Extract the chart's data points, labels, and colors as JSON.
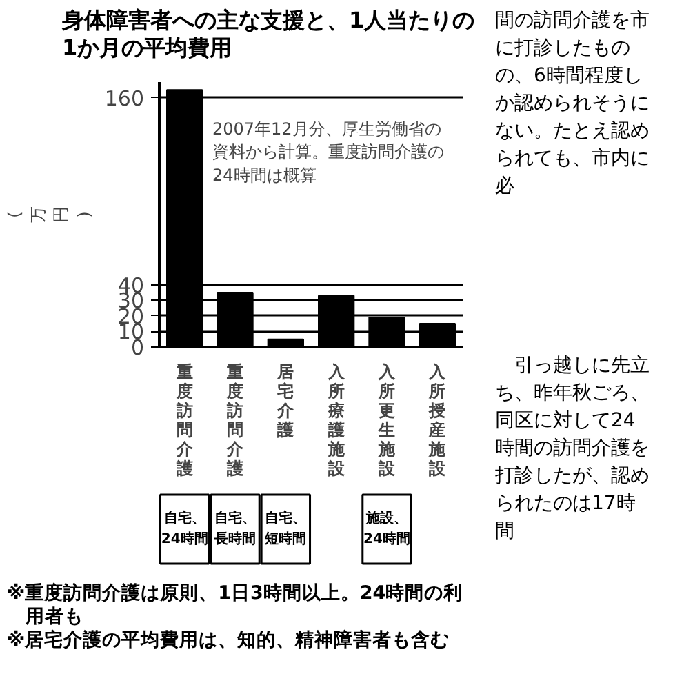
{
  "chart_data": {
    "type": "bar",
    "title": "身体障害者への主な支援と、1人当たりの1か月の平均費用",
    "subtitle": "2007年12月分、厚生労働省の資料から計算。重度訪問介護の24時間は概算",
    "ylabel": "(万円)",
    "categories": [
      "重度訪問介護",
      "重度訪問介護",
      "居宅介護",
      "入所療護施設",
      "入所更生施設",
      "入所授産施設"
    ],
    "values": [
      165,
      35,
      5,
      33,
      19,
      15
    ],
    "color": "#000000",
    "ylim": [
      0,
      170
    ],
    "yticks": [
      0,
      10,
      20,
      30,
      40,
      160
    ],
    "grid": "y",
    "annotations": [
      "自宅、24時間",
      "自宅、長時間",
      "自宅、短時間",
      "施設、24時間",
      "※重度訪問介護は原則、1日3時間以上。24時間の利用者も",
      "※居宅介護の平均費用は、知的、精神障害者も含む",
      "間の訪問介護を市に打診したものの、6時間程度しか認められそうにない。たとえ認められても、市内に必",
      "　引っ越しに先立ち、昨年秋ごろ、同区に対して24時間の訪問介護を打診したが、認められたのは17時間"
    ]
  }
}
